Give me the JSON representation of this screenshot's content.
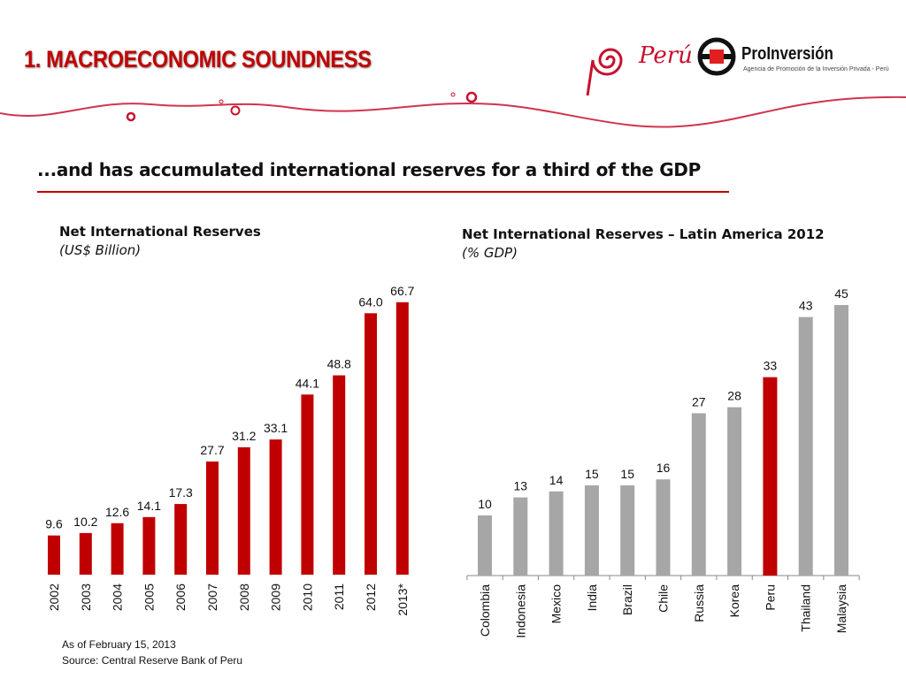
{
  "header": {
    "title": "1. MACROECONOMIC SOUNDNESS",
    "subtitle": "...and has accumulated international reserves for a third of the GDP"
  },
  "logos": {
    "peru": "Perú",
    "proinversion": "ProInversión",
    "proinversion_tagline": "Agencia de Promoción de la Inversión Privada - Perú"
  },
  "colors": {
    "accent": "#c00000",
    "bar_gray": "#a6a6a6"
  },
  "chart_data": [
    {
      "type": "bar",
      "title": "Net International Reserves",
      "unit": "(US$ Billion)",
      "categories": [
        "2002",
        "2003",
        "2004",
        "2005",
        "2006",
        "2007",
        "2008",
        "2009",
        "2010",
        "2011",
        "2012",
        "2013*"
      ],
      "values": [
        9.6,
        10.2,
        12.6,
        14.1,
        17.3,
        27.7,
        31.2,
        33.1,
        44.1,
        48.8,
        64.0,
        66.7
      ],
      "labels": [
        "9.6",
        "10.2",
        "12.6",
        "14.1",
        "17.3",
        "27.7",
        "31.2",
        "33.1",
        "44.1",
        "48.8",
        "64.0",
        "66.7"
      ],
      "color": "#c00000",
      "ylim": [
        0,
        70
      ]
    },
    {
      "type": "bar",
      "title": "Net International Reserves – Latin America  2012",
      "unit": "(% GDP)",
      "categories": [
        "Colombia",
        "Indonesia",
        "Mexico",
        "India",
        "Brazil",
        "Chile",
        "Russia",
        "Korea",
        "Peru",
        "Thailand",
        "Malaysia"
      ],
      "values": [
        10,
        13,
        14,
        15,
        15,
        16,
        27,
        28,
        33,
        43,
        45
      ],
      "labels": [
        "10",
        "13",
        "14",
        "15",
        "15",
        "16",
        "27",
        "28",
        "33",
        "43",
        "45"
      ],
      "highlight": "Peru",
      "color": "#a6a6a6",
      "highlight_color": "#c00000",
      "ylim": [
        0,
        48
      ]
    }
  ],
  "notes": {
    "date": "As of February 15, 2013",
    "source": "Source: Central Reserve Bank of Peru"
  }
}
